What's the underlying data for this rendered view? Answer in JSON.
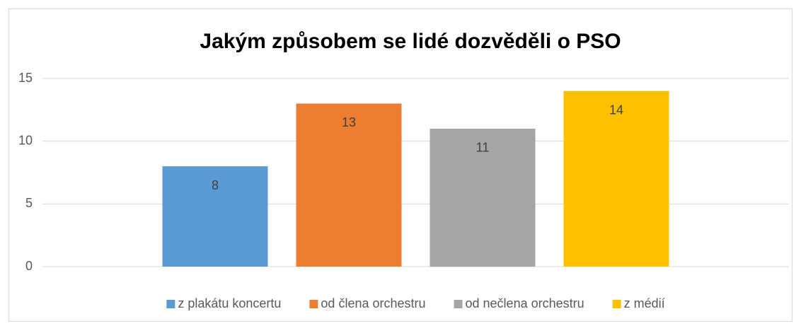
{
  "chart_data": {
    "type": "bar",
    "title": "Jakým způsobem se lidé dozvěděli o PSO",
    "categories": [
      null
    ],
    "series": [
      {
        "name": "z plakátu koncertu",
        "color": "#5b9bd5",
        "values": [
          8
        ]
      },
      {
        "name": "od člena orchestru",
        "color": "#ed7d31",
        "values": [
          13
        ]
      },
      {
        "name": "od nečlena orchestru",
        "color": "#a5a5a5",
        "values": [
          11
        ]
      },
      {
        "name": "z médií",
        "color": "#ffc000",
        "values": [
          14
        ]
      }
    ],
    "ylim": [
      0,
      15
    ],
    "yticks": [
      0,
      5,
      10,
      15
    ],
    "grid": true,
    "legend": "bottom"
  }
}
